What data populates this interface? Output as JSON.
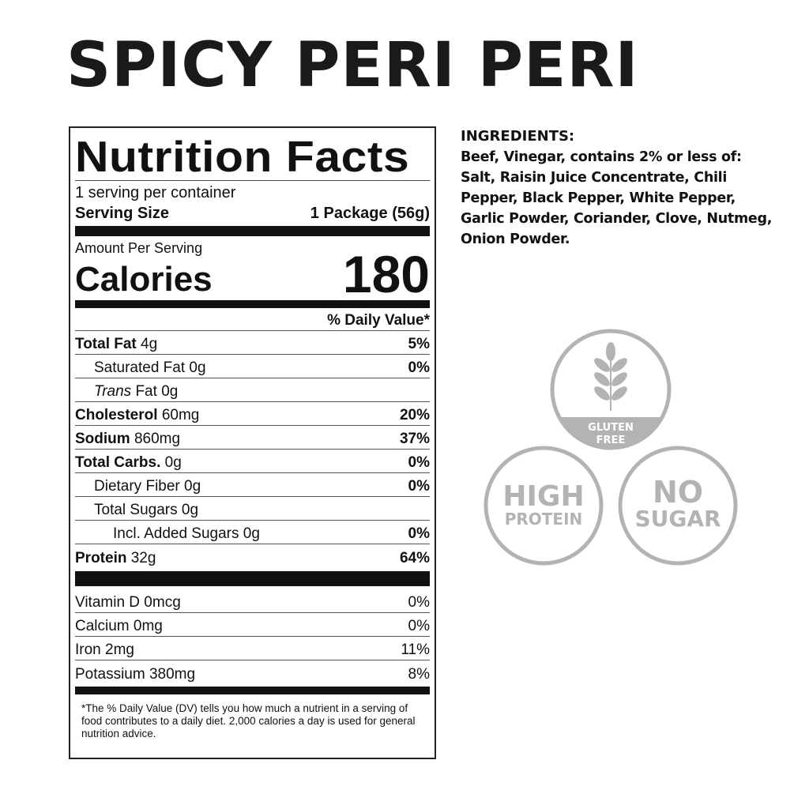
{
  "product_title": "SPICY PERI PERI",
  "label": {
    "title": "Nutrition Facts",
    "servings_per_container": "1 serving per container",
    "serving_size_label": "Serving Size",
    "serving_size_value": "1 Package (56g)",
    "amount_per_serving": "Amount Per Serving",
    "calories_label": "Calories",
    "calories_value": "180",
    "daily_value_header": "% Daily Value*",
    "nutrients": [
      {
        "name": "Total Fat",
        "amount": "4g",
        "dv": "5%",
        "bold": true,
        "indent": 0
      },
      {
        "name": "Saturated Fat",
        "amount": "0g",
        "dv": "0%",
        "bold": false,
        "indent": 1
      },
      {
        "name": "Trans",
        "name_suffix": "Fat",
        "amount": "0g",
        "dv": "",
        "bold": false,
        "indent": 1,
        "italic": true
      },
      {
        "name": "Cholesterol",
        "amount": "60mg",
        "dv": "20%",
        "bold": true,
        "indent": 0
      },
      {
        "name": "Sodium",
        "amount": "860mg",
        "dv": "37%",
        "bold": true,
        "indent": 0
      },
      {
        "name": "Total Carbs.",
        "amount": "0g",
        "dv": "0%",
        "bold": true,
        "indent": 0
      },
      {
        "name": "Dietary Fiber",
        "amount": "0g",
        "dv": "0%",
        "bold": false,
        "indent": 1
      },
      {
        "name": "Total Sugars",
        "amount": "0g",
        "dv": "",
        "bold": false,
        "indent": 1
      },
      {
        "name": "Incl. Added Sugars",
        "amount": "0g",
        "dv": "0%",
        "bold": false,
        "indent": 2
      },
      {
        "name": "Protein",
        "amount": "32g",
        "dv": "64%",
        "bold": true,
        "indent": 0
      }
    ],
    "vitamins": [
      {
        "name": "Vitamin D",
        "amount": "0mcg",
        "dv": "0%"
      },
      {
        "name": "Calcium",
        "amount": "0mg",
        "dv": "0%"
      },
      {
        "name": "Iron",
        "amount": "2mg",
        "dv": "11%"
      },
      {
        "name": "Potassium",
        "amount": "380mg",
        "dv": "8%"
      }
    ],
    "footnote": "*The % Daily Value (DV) tells you how much a nutrient in a serving of food contributes to a daily diet. 2,000 calories a day is used for general nutrition advice."
  },
  "ingredients": {
    "heading": "INGREDIENTS:",
    "text": "Beef, Vinegar, contains 2% or less of: Salt, Raisin Juice Concentrate, Chili Pepper, Black Pepper, White Pepper, Garlic Powder, Coriander, Clove, Nutmeg, Onion Powder."
  },
  "badges": {
    "color": "#b3b3b3",
    "gluten_free": {
      "icon": "wheat-icon",
      "line1": "GLUTEN",
      "line2": "FREE"
    },
    "high_protein": {
      "line1": "HIGH",
      "line2": "PROTEIN"
    },
    "no_sugar": {
      "line1": "NO",
      "line2": "SUGAR"
    }
  }
}
